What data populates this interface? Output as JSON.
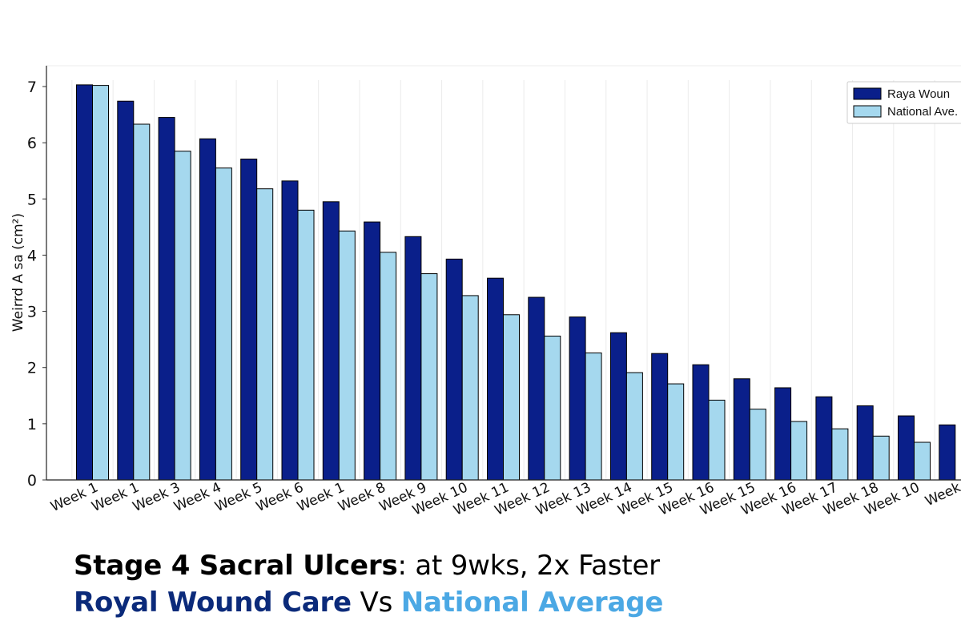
{
  "chart_data": {
    "type": "bar",
    "ylabel": "Weirrd A sa (cm²)",
    "ylim": [
      0,
      7.3
    ],
    "yticks": [
      0,
      1,
      2,
      3,
      4,
      5,
      6,
      7
    ],
    "grid": "vertical",
    "legend_position": "top-right",
    "categories": [
      "Week 1",
      "Week 1",
      "Week 3",
      "Week 4",
      "Week 5",
      "Week 6",
      "Week 1",
      "Week 8",
      "Week 9",
      "Week 10",
      "Week 11",
      "Week 12",
      "Week 13",
      "Week 14",
      "Week 15",
      "Week 16",
      "Week 15",
      "Week 16",
      "Week 17",
      "Week 18",
      "Week 10",
      "Week"
    ],
    "series": [
      {
        "name": "Raya Woun",
        "color": "#0a1f8a",
        "values": [
          7.03,
          6.74,
          6.45,
          6.07,
          5.71,
          5.32,
          4.95,
          4.59,
          4.33,
          3.93,
          3.59,
          3.25,
          2.9,
          2.62,
          2.25,
          2.05,
          1.8,
          1.64,
          1.48,
          1.32,
          1.14,
          0.98
        ]
      },
      {
        "name": "National Ave.",
        "color": "#a5d8ee",
        "values": [
          7.02,
          6.33,
          5.85,
          5.55,
          5.18,
          4.8,
          4.43,
          4.05,
          3.67,
          3.28,
          2.94,
          2.56,
          2.26,
          1.91,
          1.71,
          1.42,
          1.26,
          1.04,
          0.91,
          0.78,
          0.67,
          null
        ]
      }
    ]
  },
  "caption": {
    "line1_bold": "Stage 4 Sacral Ulcers",
    "line1_rest": ": at 9wks, 2x Faster",
    "line2_brand": "Royal Wound Care",
    "line2_vs": " Vs ",
    "line2_national": "National Average",
    "brand_color": "#0b2a7a",
    "national_color": "#4ba8e4",
    "text_color": "#000000"
  }
}
